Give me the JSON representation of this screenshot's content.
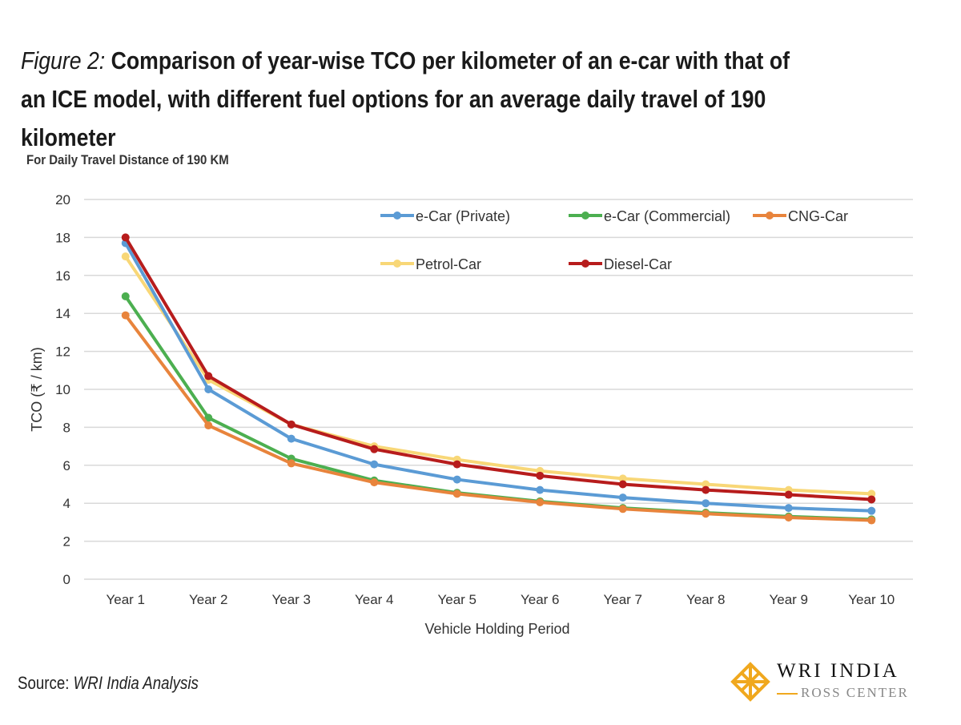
{
  "title_prefix": "Figure 2:",
  "title": "Comparison of year-wise TCO per kilometer of an e-car with that of an ICE model, with different fuel options for an average daily travel of 190 kilometer",
  "source_label": "Source:",
  "source_text": "WRI India Analysis",
  "logo": {
    "line1": "WRI INDIA",
    "line2": "ROSS CENTER"
  },
  "chart_data": {
    "type": "line",
    "title": "For Daily Travel Distance of 190 KM",
    "xlabel": "Vehicle Holding Period",
    "ylabel": "TCO (₹ / km)",
    "ylim": [
      0,
      20
    ],
    "yticks": [
      0,
      2,
      4,
      6,
      8,
      10,
      12,
      14,
      16,
      18,
      20
    ],
    "grid": true,
    "legend_position": "top-right",
    "categories": [
      "Year 1",
      "Year 2",
      "Year 3",
      "Year 4",
      "Year 5",
      "Year 6",
      "Year 7",
      "Year 8",
      "Year 9",
      "Year 10"
    ],
    "series": [
      {
        "name": "e-Car (Private)",
        "color": "#5b9bd5",
        "values": [
          17.7,
          10.0,
          7.4,
          6.05,
          5.25,
          4.7,
          4.3,
          4.0,
          3.75,
          3.6
        ]
      },
      {
        "name": "e-Car (Commercial)",
        "color": "#4caf50",
        "values": [
          14.9,
          8.5,
          6.35,
          5.2,
          4.55,
          4.1,
          3.75,
          3.5,
          3.3,
          3.15
        ]
      },
      {
        "name": "CNG-Car",
        "color": "#e8843c",
        "values": [
          13.9,
          8.1,
          6.1,
          5.1,
          4.5,
          4.05,
          3.7,
          3.45,
          3.25,
          3.1
        ]
      },
      {
        "name": "Petrol-Car",
        "color": "#f8d777",
        "values": [
          17.0,
          10.5,
          8.15,
          7.0,
          6.3,
          5.7,
          5.3,
          5.0,
          4.7,
          4.5
        ]
      },
      {
        "name": "Diesel-Car",
        "color": "#b71c1c",
        "values": [
          18.0,
          10.7,
          8.15,
          6.85,
          6.05,
          5.45,
          5.0,
          4.7,
          4.45,
          4.2
        ]
      }
    ]
  }
}
